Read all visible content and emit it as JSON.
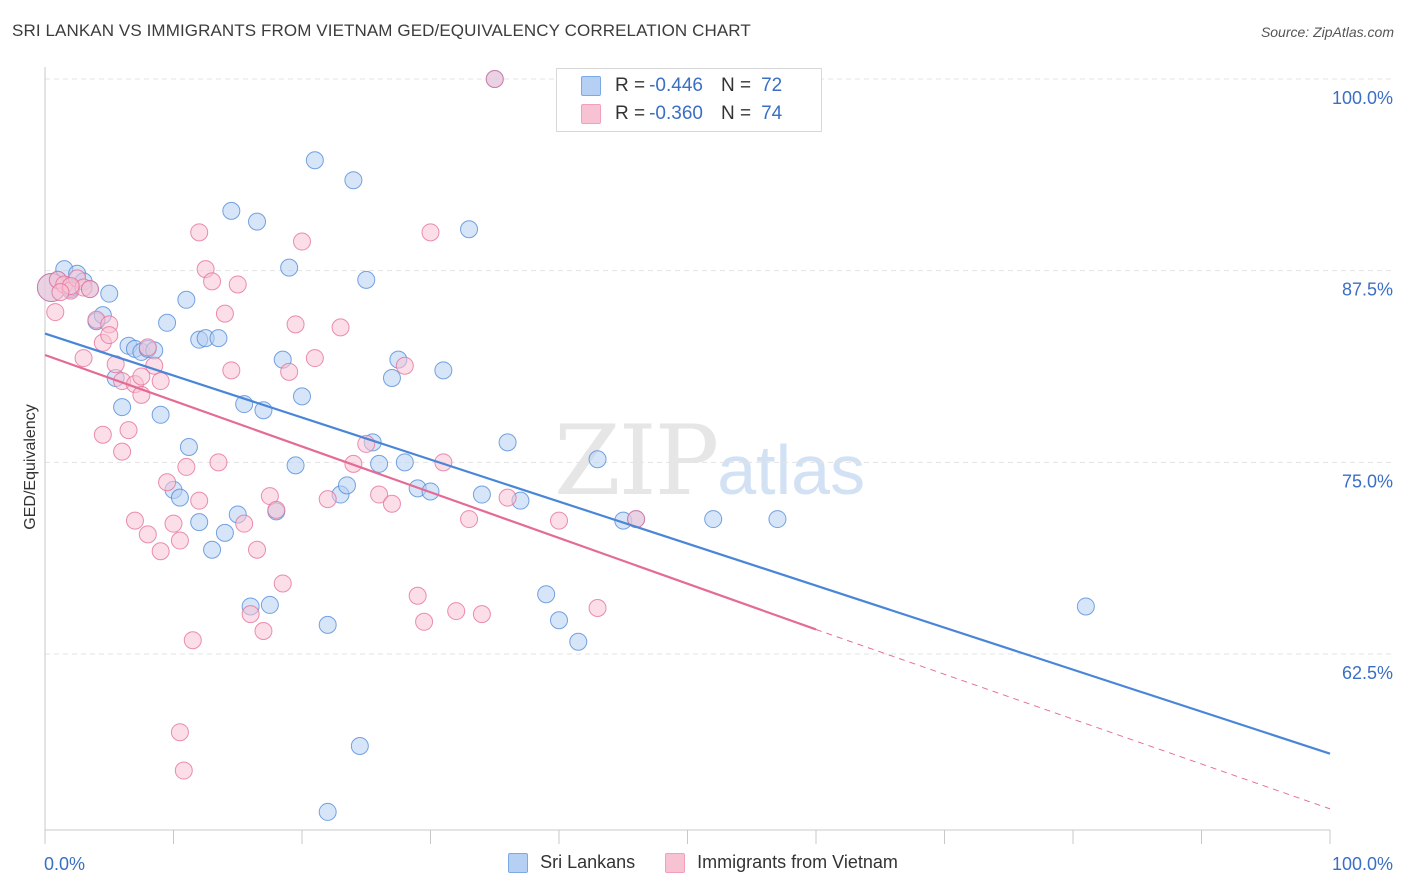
{
  "title": "SRI LANKAN VS IMMIGRANTS FROM VIETNAM GED/EQUIVALENCY CORRELATION CHART",
  "source": "Source: ZipAtlas.com",
  "watermark": {
    "zip": "ZIP",
    "atlas": "atlas"
  },
  "legend_top": {
    "rows": [
      {
        "r_label": "R =",
        "r_value": "-0.446",
        "n_label": "N =",
        "n_value": "72",
        "color": "#7aa9e8"
      },
      {
        "r_label": "R =",
        "r_value": "-0.360",
        "n_label": "N =",
        "n_value": "74",
        "color": "#f0a0b8"
      }
    ]
  },
  "colors": {
    "blue": "#4a86d8",
    "blue_fill": "#b6d0f3",
    "pink": "#e46b95",
    "pink_fill": "#f7c3d3",
    "axis_label": "#3a6fc4",
    "grid": "#dedede"
  },
  "chart_data": {
    "type": "scatter",
    "title": "SRI LANKAN VS IMMIGRANTS FROM VIETNAM GED/EQUIVALENCY CORRELATION CHART",
    "xlabel": "",
    "ylabel": "GED/Equivalency",
    "xlim": [
      0,
      100
    ],
    "ylim": [
      52,
      101.5
    ],
    "x_tick_labels": [
      "0.0%",
      "100.0%"
    ],
    "y_ticks": [
      100.0,
      87.5,
      75.0,
      62.5
    ],
    "y_tick_labels": [
      "100.0%",
      "87.5%",
      "75.0%",
      "62.5%"
    ],
    "grid": true,
    "legend_position": "bottom",
    "series": [
      {
        "name": "Sri Lankans",
        "color": "#4a86d8",
        "trend": {
          "x0": 0,
          "y0": 83.4,
          "x1": 100,
          "y1": 56.0
        },
        "points": [
          [
            0.5,
            86.4
          ],
          [
            1,
            86.9
          ],
          [
            1.5,
            87.6
          ],
          [
            2,
            86.3
          ],
          [
            2.5,
            87.3
          ],
          [
            3,
            86.8
          ],
          [
            3.5,
            86.3
          ],
          [
            4,
            84.2
          ],
          [
            4.5,
            84.6
          ],
          [
            5,
            86.0
          ],
          [
            5.5,
            80.5
          ],
          [
            6,
            78.6
          ],
          [
            6.5,
            82.6
          ],
          [
            7,
            82.4
          ],
          [
            7.5,
            82.2
          ],
          [
            8,
            82.4
          ],
          [
            8.5,
            82.3
          ],
          [
            9,
            78.1
          ],
          [
            9.5,
            84.1
          ],
          [
            10,
            73.2
          ],
          [
            10.5,
            72.7
          ],
          [
            11,
            85.6
          ],
          [
            11.2,
            76.0
          ],
          [
            12,
            71.1
          ],
          [
            12,
            83.0
          ],
          [
            12.5,
            83.1
          ],
          [
            13,
            69.3
          ],
          [
            13.5,
            83.1
          ],
          [
            14,
            70.4
          ],
          [
            14.5,
            91.4
          ],
          [
            15,
            71.6
          ],
          [
            15.5,
            78.8
          ],
          [
            16,
            65.6
          ],
          [
            16.5,
            90.7
          ],
          [
            17,
            78.4
          ],
          [
            17.5,
            65.7
          ],
          [
            18,
            71.8
          ],
          [
            18.5,
            81.7
          ],
          [
            19,
            87.7
          ],
          [
            19.5,
            74.8
          ],
          [
            20,
            79.3
          ],
          [
            21,
            94.7
          ],
          [
            22,
            64.4
          ],
          [
            23,
            72.9
          ],
          [
            23.5,
            73.5
          ],
          [
            24,
            93.4
          ],
          [
            24.5,
            56.5
          ],
          [
            25,
            86.9
          ],
          [
            25.5,
            76.3
          ],
          [
            26,
            74.9
          ],
          [
            27,
            80.5
          ],
          [
            27.5,
            81.7
          ],
          [
            28,
            75.0
          ],
          [
            29,
            73.3
          ],
          [
            30,
            73.1
          ],
          [
            31,
            81.0
          ],
          [
            33,
            90.2
          ],
          [
            34,
            72.9
          ],
          [
            35,
            100.0
          ],
          [
            36,
            76.3
          ],
          [
            37,
            72.5
          ],
          [
            39,
            66.4
          ],
          [
            40,
            64.7
          ],
          [
            41.5,
            63.3
          ],
          [
            43,
            75.2
          ],
          [
            45,
            71.2
          ],
          [
            46,
            71.3
          ],
          [
            52,
            71.3
          ],
          [
            57,
            71.3
          ],
          [
            81,
            65.6
          ],
          [
            22,
            52.2
          ],
          [
            2,
            86.4
          ]
        ]
      },
      {
        "name": "Immigrants from Vietnam",
        "color": "#e46b95",
        "trend": {
          "x0": 0,
          "y0": 82.0,
          "x1": 60,
          "y1": 64.1,
          "x_dash_end": 100,
          "y_dash_end": 52.4
        },
        "points": [
          [
            0.5,
            86.4
          ],
          [
            1,
            86.9
          ],
          [
            1.5,
            86.6
          ],
          [
            2,
            86.2
          ],
          [
            2.5,
            87.0
          ],
          [
            3,
            86.4
          ],
          [
            3.5,
            86.3
          ],
          [
            4,
            84.3
          ],
          [
            4.5,
            82.8
          ],
          [
            5,
            84.0
          ],
          [
            5.5,
            81.4
          ],
          [
            6,
            80.3
          ],
          [
            6.5,
            77.1
          ],
          [
            7,
            80.1
          ],
          [
            7.5,
            79.4
          ],
          [
            8,
            82.5
          ],
          [
            8.5,
            81.3
          ],
          [
            9,
            80.3
          ],
          [
            9.5,
            73.7
          ],
          [
            10,
            71.0
          ],
          [
            10.5,
            69.9
          ],
          [
            11,
            74.7
          ],
          [
            11.5,
            63.4
          ],
          [
            12,
            90.0
          ],
          [
            12.5,
            87.6
          ],
          [
            13,
            86.8
          ],
          [
            13.5,
            75.0
          ],
          [
            14,
            84.7
          ],
          [
            14.5,
            81.0
          ],
          [
            15,
            86.6
          ],
          [
            15.5,
            71.0
          ],
          [
            16,
            65.1
          ],
          [
            16.5,
            69.3
          ],
          [
            17,
            64.0
          ],
          [
            17.5,
            72.8
          ],
          [
            18,
            71.9
          ],
          [
            18.5,
            67.1
          ],
          [
            19,
            80.9
          ],
          [
            19.5,
            84.0
          ],
          [
            20,
            89.4
          ],
          [
            21,
            81.8
          ],
          [
            22,
            72.6
          ],
          [
            23,
            83.8
          ],
          [
            24,
            74.9
          ],
          [
            25,
            76.2
          ],
          [
            26,
            72.9
          ],
          [
            27,
            72.3
          ],
          [
            28,
            81.3
          ],
          [
            29,
            66.3
          ],
          [
            29.5,
            64.6
          ],
          [
            30,
            90.0
          ],
          [
            31,
            75.0
          ],
          [
            32,
            65.3
          ],
          [
            33,
            71.3
          ],
          [
            34,
            65.1
          ],
          [
            35,
            100.0
          ],
          [
            36,
            72.7
          ],
          [
            40,
            71.2
          ],
          [
            43,
            65.5
          ],
          [
            46,
            71.3
          ],
          [
            10.5,
            57.4
          ],
          [
            10.8,
            54.9
          ],
          [
            7,
            71.2
          ],
          [
            8,
            70.3
          ],
          [
            9,
            69.2
          ],
          [
            12,
            72.5
          ],
          [
            6,
            75.7
          ],
          [
            4.5,
            76.8
          ],
          [
            3,
            81.8
          ],
          [
            2,
            86.5
          ],
          [
            1.2,
            86.1
          ],
          [
            0.8,
            84.8
          ],
          [
            5,
            83.3
          ],
          [
            7.5,
            80.6
          ]
        ]
      }
    ]
  }
}
